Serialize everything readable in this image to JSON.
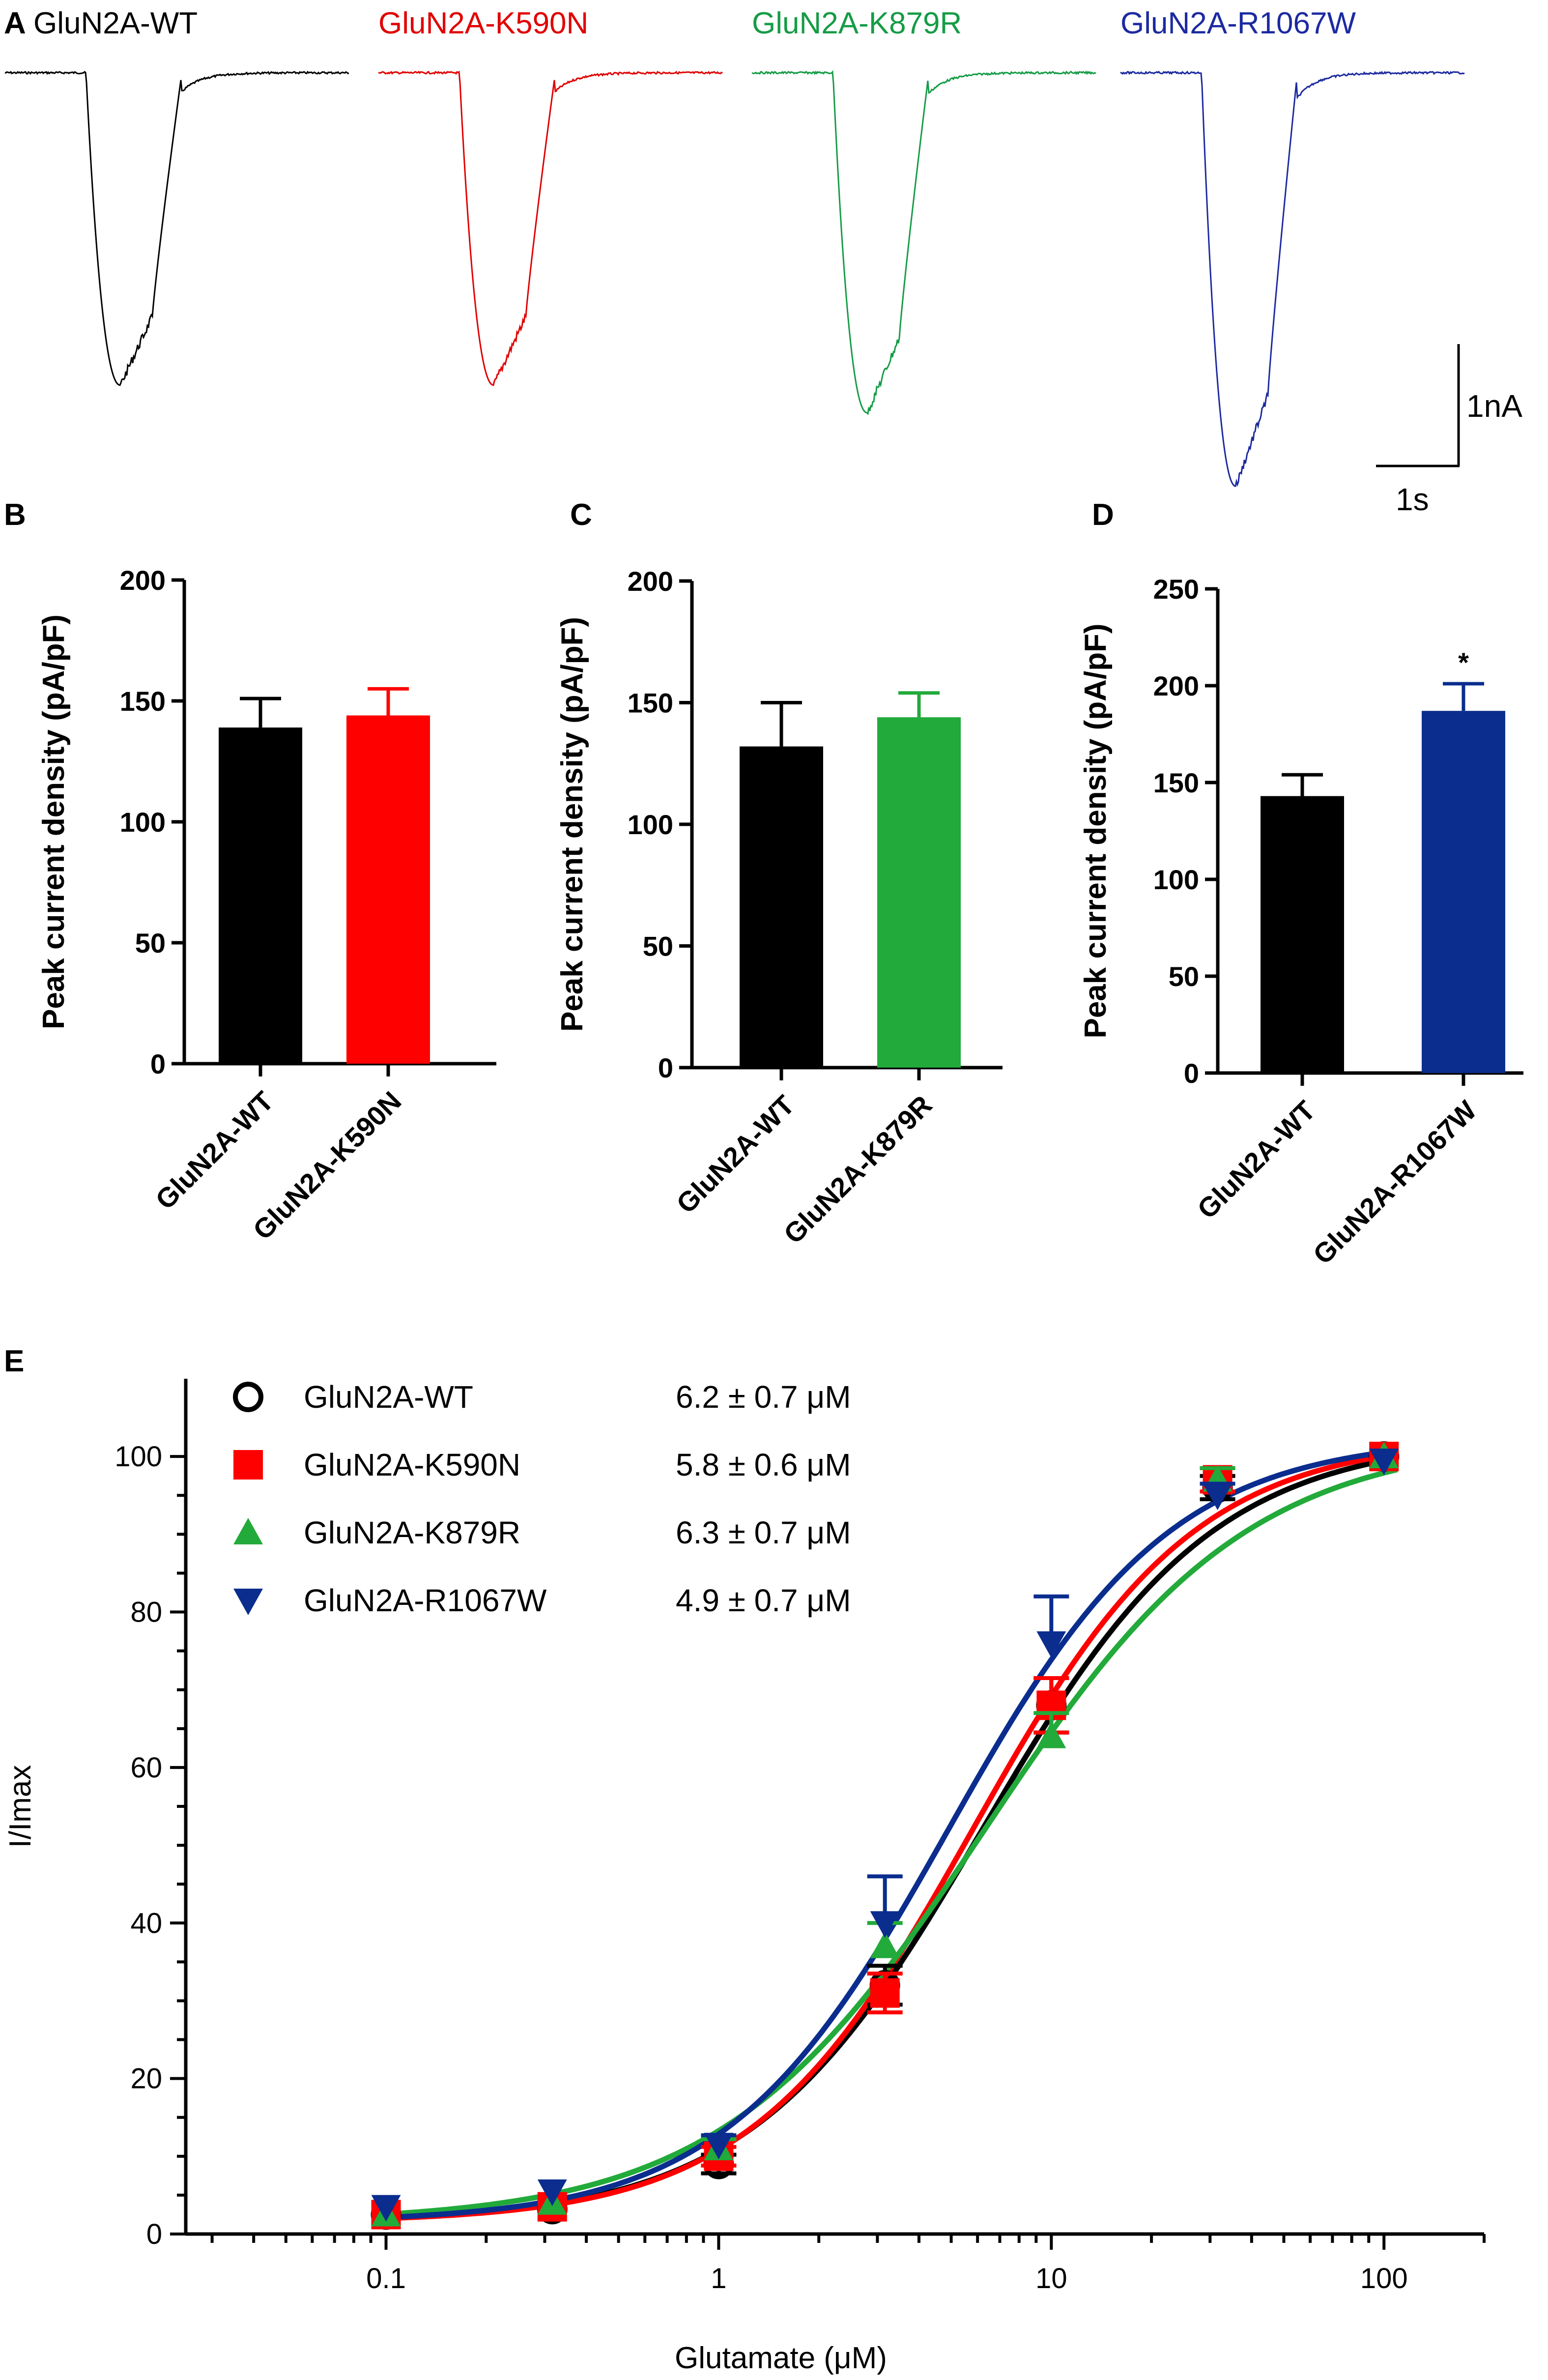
{
  "panel_labels": {
    "a": "A",
    "b": "B",
    "c": "C",
    "d": "D",
    "e": "E"
  },
  "colors": {
    "wt": "#000000",
    "k590n": "#ff0000",
    "k879r": "#22aa3a",
    "r1067w": "#0a2d8e",
    "trace_green": "#159c46",
    "trace_blue": "#1c2aa0"
  },
  "traces": {
    "items": [
      {
        "label": "GluN2A-WT",
        "color": "#000000",
        "peak_nA": 3.4
      },
      {
        "label": "GluN2A-K590N",
        "color": "#e00000",
        "peak_nA": 3.4
      },
      {
        "label": "GluN2A-K879R",
        "color": "#159c46",
        "peak_nA": 3.7
      },
      {
        "label": "GluN2A-R1067W",
        "color": "#1c2aa0",
        "peak_nA": 4.5
      }
    ],
    "scale_bar": {
      "y_label": "1nA",
      "x_label": "1s"
    }
  },
  "chart_data": [
    {
      "panel": "B",
      "type": "bar",
      "categories": [
        "GluN2A-WT",
        "GluN2A-K590N"
      ],
      "values": [
        139,
        144
      ],
      "errors": [
        12,
        11
      ],
      "colors": [
        "#000000",
        "#ff0000"
      ],
      "ylabel": "Peak current density (pA/pF)",
      "ylim": [
        0,
        200
      ],
      "yticks": [
        "0",
        "50",
        "100",
        "150",
        "200"
      ],
      "annotation": ""
    },
    {
      "panel": "C",
      "type": "bar",
      "categories": [
        "GluN2A-WT",
        "GluN2A-K879R"
      ],
      "values": [
        132,
        144
      ],
      "errors": [
        18,
        10
      ],
      "colors": [
        "#000000",
        "#22aa3a"
      ],
      "ylabel": "Peak current density (pA/pF)",
      "ylim": [
        0,
        200
      ],
      "yticks": [
        "0",
        "50",
        "100",
        "150",
        "200"
      ],
      "annotation": ""
    },
    {
      "panel": "D",
      "type": "bar",
      "categories": [
        "GluN2A-WT",
        "GluN2A-R1067W"
      ],
      "values": [
        143,
        187
      ],
      "errors": [
        11,
        14
      ],
      "colors": [
        "#000000",
        "#0a2d8e"
      ],
      "ylabel": "Peak current density (pA/pF)",
      "ylim": [
        0,
        250
      ],
      "yticks": [
        "0",
        "50",
        "100",
        "150",
        "200",
        "250"
      ],
      "annotation": "*"
    },
    {
      "panel": "E",
      "type": "scatter",
      "xlabel": "Glutamate (μM)",
      "ylabel": "I/Imax",
      "xscale": "log",
      "xlim": [
        0.025,
        200
      ],
      "ylim": [
        0,
        110
      ],
      "xticks": [
        "0.1",
        "1",
        "10",
        "100"
      ],
      "yticks": [
        "0",
        "20",
        "40",
        "60",
        "80",
        "100"
      ],
      "x": [
        0.1,
        0.316,
        1,
        3.16,
        10,
        31.6,
        100
      ],
      "series": [
        {
          "name": "GluN2A-WT",
          "ec50": "6.2 ± 0.7 μM",
          "ec50_value": 6.2,
          "hill": 1.25,
          "marker": "circle-open",
          "color": "#000000",
          "values": [
            2.5,
            3.2,
            9,
            32,
            68,
            96,
            100
          ],
          "errors": [
            0.6,
            0.8,
            1.2,
            2.5,
            3.5,
            1.5,
            0.5
          ]
        },
        {
          "name": "GluN2A-K590N",
          "ec50": "5.8 ± 0.6 μM",
          "ec50_value": 5.8,
          "hill": 1.3,
          "marker": "square",
          "color": "#ff0000",
          "values": [
            2.5,
            3.5,
            10,
            31,
            68,
            97,
            100
          ],
          "errors": [
            0.6,
            0.8,
            1.2,
            2.5,
            3.5,
            1.5,
            0.5
          ]
        },
        {
          "name": "GluN2A-K879R",
          "ec50": "6.3 ± 0.7 μM",
          "ec50_value": 6.3,
          "hill": 1.1,
          "marker": "triangle-up",
          "color": "#22aa3a",
          "values": [
            2.5,
            4,
            11,
            37,
            64,
            97,
            100
          ],
          "errors": [
            0.6,
            0.8,
            1.2,
            3,
            3,
            1.5,
            0.5
          ]
        },
        {
          "name": "GluN2A-R1067W",
          "ec50": "4.9 ± 0.7 μM",
          "ec50_value": 4.9,
          "hill": 1.3,
          "marker": "triangle-down",
          "color": "#0a2d8e",
          "values": [
            3.5,
            5.5,
            11.5,
            40,
            76,
            95,
            99.5
          ],
          "errors": [
            0.6,
            0.8,
            1.2,
            6,
            6,
            1.5,
            0.5
          ]
        }
      ]
    }
  ]
}
